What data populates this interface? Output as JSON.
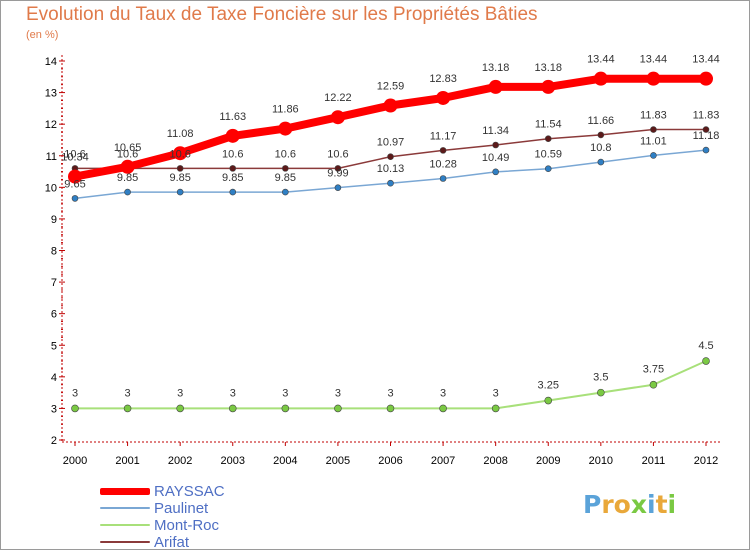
{
  "title": "Evolution du Taux de Taxe Foncière sur les Propriétés Bâties",
  "unit_label": "(en %)",
  "colors": {
    "title": "#e07a4a",
    "axis": "#c00000",
    "legend_text": "#4f6fc4"
  },
  "chart_data": {
    "type": "line",
    "title": "Evolution du Taux de Taxe Foncière sur les Propriétés Bâties",
    "ylabel": "(en %)",
    "xlabel": "",
    "categories": [
      "2000",
      "2001",
      "2002",
      "2003",
      "2004",
      "2005",
      "2006",
      "2007",
      "2008",
      "2009",
      "2010",
      "2011",
      "2012"
    ],
    "ylim": [
      2,
      14
    ],
    "yticks": [
      "2",
      "3",
      "4",
      "5",
      "6",
      "7",
      "8",
      "9",
      "10",
      "11",
      "12",
      "13",
      "14"
    ],
    "series": [
      {
        "name": "RAYSSAC",
        "color": "#ff0000",
        "point_color": "#ff0000",
        "width": 8,
        "marker": 7,
        "values": [
          10.34,
          10.65,
          11.08,
          11.63,
          11.86,
          12.22,
          12.59,
          12.83,
          13.18,
          13.18,
          13.44,
          13.44,
          13.44
        ],
        "labels": [
          "10.34",
          "10.65",
          "11.08",
          "11.63",
          "11.86",
          "12.22",
          "12.59",
          "12.83",
          "13.18",
          "13.18",
          "13.44",
          "13.44",
          "13.44"
        ],
        "label_offset": -16
      },
      {
        "name": "Paulinet",
        "color": "#7aa7d4",
        "point_color": "#2f7fc4",
        "width": 1.5,
        "marker": 3,
        "values": [
          9.65,
          9.85,
          9.85,
          9.85,
          9.85,
          9.99,
          10.13,
          10.28,
          10.49,
          10.59,
          10.8,
          11.01,
          11.18
        ],
        "labels": [
          "9.65",
          "9.85",
          "9.85",
          "9.85",
          "9.85",
          "9.99",
          "10.13",
          "10.28",
          "10.49",
          "10.59",
          "10.8",
          "11.01",
          "11.18"
        ],
        "label_offset": -11
      },
      {
        "name": "Mont-Roc",
        "color": "#a8e07a",
        "point_color": "#7ac943",
        "width": 2,
        "marker": 3.5,
        "values": [
          3,
          3,
          3,
          3,
          3,
          3,
          3,
          3,
          3,
          3.25,
          3.5,
          3.75,
          4.5
        ],
        "labels": [
          "3",
          "3",
          "3",
          "3",
          "3",
          "3",
          "3",
          "3",
          "3",
          "3.25",
          "3.5",
          "3.75",
          "4.5"
        ],
        "label_offset": -12
      },
      {
        "name": "Arifat",
        "color": "#8b3a3a",
        "point_color": "#5c1a1a",
        "width": 1.5,
        "marker": 3,
        "values": [
          10.6,
          10.6,
          10.6,
          10.6,
          10.6,
          10.6,
          10.97,
          11.17,
          11.34,
          11.54,
          11.66,
          11.83,
          11.83
        ],
        "labels": [
          "10.6",
          "10.6",
          "10.6",
          "10.6",
          "10.6",
          "10.6",
          "10.97",
          "11.17",
          "11.34",
          "11.54",
          "11.66",
          "11.83",
          "11.83"
        ],
        "label_offset": -11
      }
    ]
  },
  "legend": [
    {
      "name": "RAYSSAC",
      "color": "#ff0000",
      "thickness": 7
    },
    {
      "name": "Paulinet",
      "color": "#7aa7d4",
      "thickness": 2
    },
    {
      "name": "Mont-Roc",
      "color": "#a8e07a",
      "thickness": 2
    },
    {
      "name": "Arifat",
      "color": "#8b3a3a",
      "thickness": 2
    }
  ],
  "logo": {
    "letters": [
      {
        "ch": "P",
        "color": "#5ba3d9"
      },
      {
        "ch": "r",
        "color": "#e9a83a"
      },
      {
        "ch": "o",
        "color": "#e9a83a"
      },
      {
        "ch": "x",
        "color": "#7ac943"
      },
      {
        "ch": "i",
        "color": "#5ba3d9"
      },
      {
        "ch": "t",
        "color": "#e9a83a"
      },
      {
        "ch": "i",
        "color": "#7ac943"
      }
    ]
  }
}
